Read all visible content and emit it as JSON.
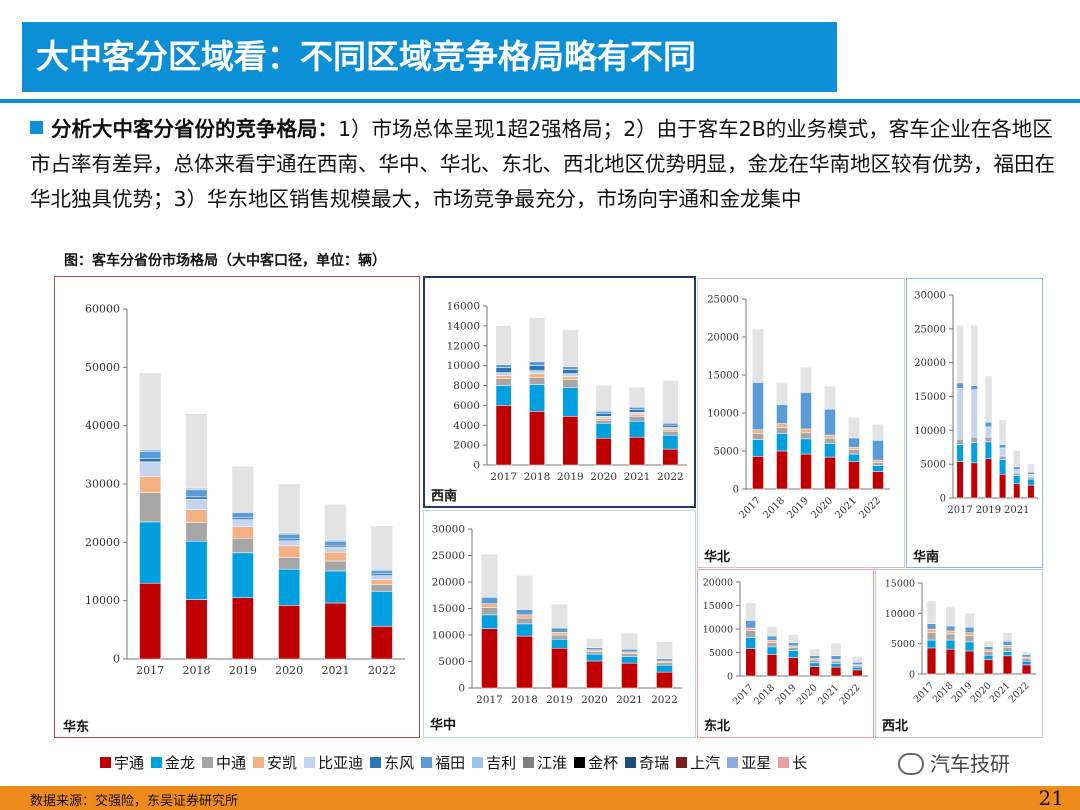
{
  "header": {
    "title": "大中客分区域看：不同区域竞争格局略有不同"
  },
  "intro": {
    "lead": "分析大中客分省份的竞争格局：",
    "body": "1）市场总体呈现1超2强格局；2）由于客车2B的业务模式，客车企业在各地区市占率有差异，总体来看宇通在西南、华中、华北、东北、西北地区优势明显，金龙在华南地区较有优势，福田在华北独具优势；3）华东地区销售规模最大，市场竞争最充分，市场向宇通和金龙集中"
  },
  "figure_caption": "图：客车分省份市场格局（大中客口径，单位：辆）",
  "legend": [
    {
      "label": "宇通",
      "color": "#c00000"
    },
    {
      "label": "金龙",
      "color": "#00a0e0"
    },
    {
      "label": "中通",
      "color": "#a6a6a6"
    },
    {
      "label": "安凯",
      "color": "#f4b183"
    },
    {
      "label": "比亚迪",
      "color": "#c5d5ee"
    },
    {
      "label": "东风",
      "color": "#2e75b6"
    },
    {
      "label": "福田",
      "color": "#5b9bd5"
    },
    {
      "label": "吉利",
      "color": "#9dc3e6"
    },
    {
      "label": "江淮",
      "color": "#7f7f7f"
    },
    {
      "label": "金杯",
      "color": "#000000"
    },
    {
      "label": "奇瑞",
      "color": "#1f4e79"
    },
    {
      "label": "上汽",
      "color": "#7b2020"
    },
    {
      "label": "亚星",
      "color": "#8faadc"
    },
    {
      "label": "长",
      "color": "#e6a0a0"
    }
  ],
  "watermark": "汽车技研",
  "source": "数据来源：交强险，东吴证券研究所",
  "page_number": "21",
  "chart_data": [
    {
      "type": "bar",
      "region": "华东",
      "categories": [
        "2017",
        "2018",
        "2019",
        "2020",
        "2021",
        "2022"
      ],
      "ylim": [
        0,
        60000
      ],
      "yticks": [
        0,
        10000,
        20000,
        30000,
        40000,
        50000,
        60000
      ],
      "totals": [
        49000,
        42000,
        33000,
        30000,
        26500,
        22800
      ],
      "series": [
        {
          "name": "宇通",
          "values": [
            13000,
            10200,
            10500,
            9200,
            9600,
            5600
          ]
        },
        {
          "name": "金龙",
          "values": [
            10500,
            10000,
            7700,
            6200,
            5500,
            6000
          ]
        },
        {
          "name": "中通",
          "values": [
            5000,
            3200,
            2500,
            2000,
            1700,
            1200
          ]
        },
        {
          "name": "安凯",
          "values": [
            2800,
            2200,
            2000,
            2000,
            1500,
            800
          ]
        },
        {
          "name": "比亚迪",
          "values": [
            2500,
            1800,
            1200,
            900,
            900,
            700
          ]
        },
        {
          "name": "东风",
          "values": [
            600,
            400,
            300,
            300,
            300,
            300
          ]
        },
        {
          "name": "福田",
          "values": [
            1200,
            1200,
            900,
            800,
            700,
            600
          ]
        },
        {
          "name": "吉利",
          "values": [
            300,
            300,
            200,
            200,
            200,
            200
          ]
        }
      ]
    },
    {
      "type": "bar",
      "region": "西南",
      "categories": [
        "2017",
        "2018",
        "2019",
        "2020",
        "2021",
        "2022"
      ],
      "ylim": [
        0,
        16000
      ],
      "yticks": [
        0,
        2000,
        4000,
        6000,
        8000,
        10000,
        12000,
        14000,
        16000
      ],
      "totals": [
        14000,
        14800,
        13600,
        8000,
        7800,
        8500
      ],
      "series": [
        {
          "name": "宇通",
          "values": [
            6000,
            5400,
            4900,
            2700,
            2800,
            1600
          ]
        },
        {
          "name": "金龙",
          "values": [
            2000,
            2700,
            2900,
            1500,
            1600,
            1400
          ]
        },
        {
          "name": "中通",
          "values": [
            700,
            700,
            800,
            300,
            500,
            400
          ]
        },
        {
          "name": "安凯",
          "values": [
            300,
            400,
            300,
            200,
            200,
            200
          ]
        },
        {
          "name": "比亚迪",
          "values": [
            300,
            300,
            300,
            200,
            200,
            200
          ]
        },
        {
          "name": "东风",
          "values": [
            500,
            500,
            400,
            300,
            300,
            200
          ]
        },
        {
          "name": "福田",
          "values": [
            300,
            400,
            300,
            200,
            200,
            200
          ]
        }
      ]
    },
    {
      "type": "bar",
      "region": "华北",
      "categories": [
        "2017",
        "2018",
        "2019",
        "2020",
        "2021",
        "2022"
      ],
      "ylim": [
        0,
        25000
      ],
      "yticks": [
        0,
        5000,
        10000,
        15000,
        20000,
        25000
      ],
      "totals": [
        21000,
        14000,
        16000,
        13500,
        9400,
        8500
      ],
      "series": [
        {
          "name": "宇通",
          "values": [
            4300,
            5000,
            4600,
            4200,
            3600,
            2300
          ]
        },
        {
          "name": "金龙",
          "values": [
            2200,
            2300,
            2000,
            1800,
            1000,
            800
          ]
        },
        {
          "name": "中通",
          "values": [
            800,
            800,
            800,
            700,
            600,
            400
          ]
        },
        {
          "name": "安凯",
          "values": [
            500,
            500,
            500,
            400,
            300,
            300
          ]
        },
        {
          "name": "福田",
          "values": [
            6200,
            2500,
            4800,
            3400,
            1200,
            2600
          ]
        }
      ]
    },
    {
      "type": "bar",
      "region": "华南",
      "categories": [
        "2017",
        "2018",
        "2019",
        "2020",
        "2021",
        "2022"
      ],
      "ylim": [
        0,
        30000
      ],
      "yticks": [
        0,
        5000,
        10000,
        15000,
        20000,
        25000,
        30000
      ],
      "ticklabels": [
        "2017",
        "",
        "2019",
        "",
        "2021",
        ""
      ],
      "totals": [
        25500,
        25500,
        18000,
        11500,
        7000,
        5000
      ],
      "series": [
        {
          "name": "宇通",
          "values": [
            5400,
            5200,
            5800,
            3500,
            2100,
            1900
          ]
        },
        {
          "name": "金龙",
          "values": [
            2500,
            3000,
            2500,
            2200,
            1200,
            900
          ]
        },
        {
          "name": "中通",
          "values": [
            800,
            800,
            700,
            500,
            400,
            300
          ]
        },
        {
          "name": "比亚迪",
          "values": [
            7500,
            7000,
            1500,
            1200,
            500,
            400
          ]
        },
        {
          "name": "福田",
          "values": [
            800,
            600,
            700,
            500,
            400,
            300
          ]
        }
      ]
    },
    {
      "type": "bar",
      "region": "华中",
      "categories": [
        "2017",
        "2018",
        "2019",
        "2020",
        "2021",
        "2022"
      ],
      "ylim": [
        0,
        30000
      ],
      "yticks": [
        0,
        5000,
        10000,
        15000,
        20000,
        25000,
        30000
      ],
      "totals": [
        25200,
        21200,
        15800,
        9300,
        10300,
        8700
      ],
      "series": [
        {
          "name": "宇通",
          "values": [
            11200,
            9800,
            7500,
            5100,
            4700,
            3000
          ]
        },
        {
          "name": "金龙",
          "values": [
            2600,
            2300,
            1700,
            1300,
            1200,
            1300
          ]
        },
        {
          "name": "中通",
          "values": [
            1400,
            1100,
            800,
            500,
            600,
            500
          ]
        },
        {
          "name": "安凯",
          "values": [
            700,
            600,
            500,
            300,
            300,
            300
          ]
        },
        {
          "name": "福田",
          "values": [
            1200,
            1000,
            800,
            400,
            500,
            400
          ]
        }
      ]
    },
    {
      "type": "bar",
      "region": "东北",
      "categories": [
        "2017",
        "2018",
        "2019",
        "2020",
        "2021",
        "2022"
      ],
      "ylim": [
        0,
        20000
      ],
      "yticks": [
        0,
        5000,
        10000,
        15000,
        20000
      ],
      "totals": [
        15500,
        10500,
        8800,
        5700,
        7000,
        4100
      ],
      "series": [
        {
          "name": "宇通",
          "values": [
            5800,
            4600,
            3900,
            2000,
            1900,
            1300
          ]
        },
        {
          "name": "金龙",
          "values": [
            2400,
            1600,
            1500,
            800,
            800,
            600
          ]
        },
        {
          "name": "中通",
          "values": [
            1500,
            900,
            700,
            600,
            500,
            300
          ]
        },
        {
          "name": "安凯",
          "values": [
            500,
            500,
            300,
            300,
            300,
            200
          ]
        },
        {
          "name": "福田",
          "values": [
            1600,
            900,
            700,
            600,
            800,
            500
          ]
        }
      ]
    },
    {
      "type": "bar",
      "region": "西北",
      "categories": [
        "2017",
        "2018",
        "2019",
        "2020",
        "2021",
        "2022"
      ],
      "ylim": [
        0,
        15000
      ],
      "yticks": [
        0,
        5000,
        10000,
        15000
      ],
      "totals": [
        12000,
        11000,
        10000,
        5400,
        6800,
        3600
      ],
      "series": [
        {
          "name": "宇通",
          "values": [
            4300,
            4100,
            3800,
            2400,
            3000,
            1500
          ]
        },
        {
          "name": "金龙",
          "values": [
            1300,
            1500,
            1500,
            700,
            700,
            600
          ]
        },
        {
          "name": "中通",
          "values": [
            1200,
            1000,
            1000,
            600,
            700,
            500
          ]
        },
        {
          "name": "安凯",
          "values": [
            600,
            500,
            500,
            300,
            300,
            200
          ]
        },
        {
          "name": "福田",
          "values": [
            900,
            800,
            900,
            500,
            700,
            400
          ]
        }
      ]
    }
  ]
}
